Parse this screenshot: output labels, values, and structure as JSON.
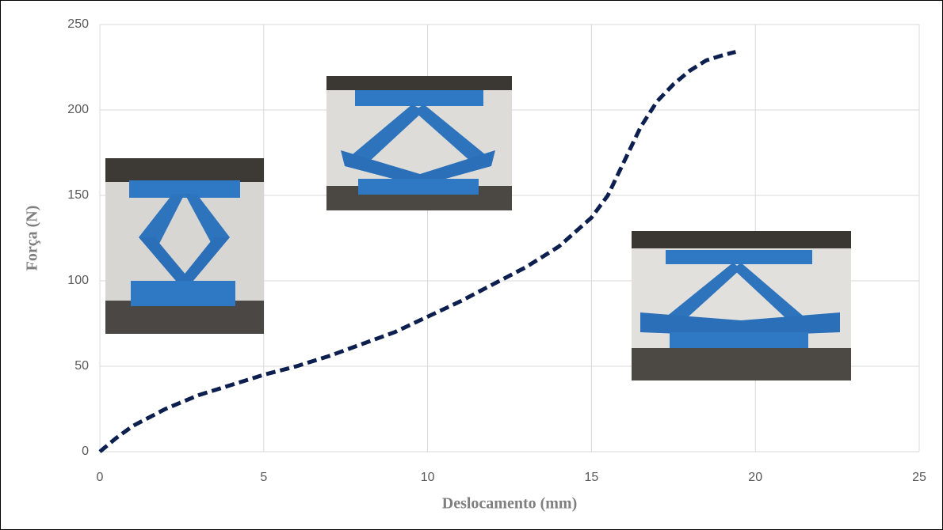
{
  "chart_data": {
    "type": "line",
    "x_label": "Deslocamento (mm)",
    "y_label": "Força (N)",
    "x": [
      0,
      0.5,
      1,
      2,
      3,
      4,
      5,
      6,
      7,
      8,
      9,
      10,
      11,
      12,
      13,
      14,
      15,
      15.5,
      16,
      16.5,
      17,
      17.5,
      18,
      18.5,
      19,
      19.4
    ],
    "series": [
      {
        "color": "#0d1f4f",
        "values": [
          0,
          8,
          15,
          25,
          33,
          39,
          45,
          50,
          56,
          63,
          70,
          79,
          88,
          98,
          108,
          120,
          137,
          150,
          170,
          190,
          205,
          215,
          223,
          229,
          232,
          234
        ]
      }
    ],
    "xlim": [
      0,
      25
    ],
    "xticks": [
      0,
      5,
      10,
      15,
      20,
      25
    ],
    "ylim": [
      0,
      250
    ],
    "yticks": [
      0,
      50,
      100,
      150,
      200,
      250
    ],
    "grid": true
  }
}
